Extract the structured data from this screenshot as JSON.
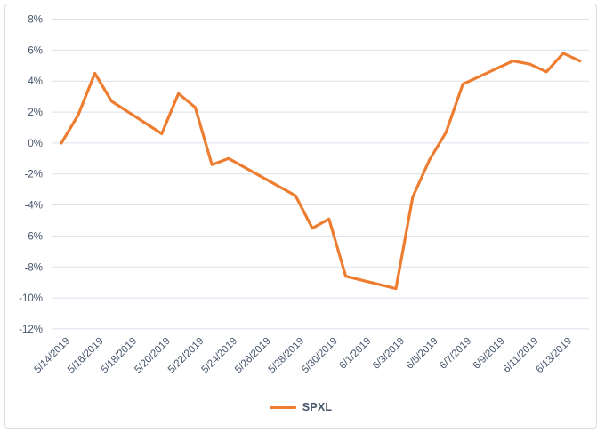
{
  "chart": {
    "legend": {
      "label": "SPXL"
    },
    "colors": {
      "series": "#ED7D31",
      "gridline": "#DAE1EB",
      "axis_text": "#44546A",
      "frame_border": "#D6DDE6",
      "background": "#FFFFFF"
    }
  },
  "chart_data": {
    "type": "line",
    "title": "",
    "xlabel": "",
    "ylabel": "",
    "grid": "horizontal",
    "legend_position": "bottom",
    "series": [
      {
        "name": "SPXL",
        "color": "#ED7D31",
        "points": [
          {
            "date": "5/14/2019",
            "value": 0.0
          },
          {
            "date": "5/15/2019",
            "value": 1.8
          },
          {
            "date": "5/16/2019",
            "value": 4.5
          },
          {
            "date": "5/17/2019",
            "value": 2.7
          },
          {
            "date": "5/20/2019",
            "value": 0.6
          },
          {
            "date": "5/21/2019",
            "value": 3.2
          },
          {
            "date": "5/22/2019",
            "value": 2.3
          },
          {
            "date": "5/23/2019",
            "value": -1.4
          },
          {
            "date": "5/24/2019",
            "value": -1.0
          },
          {
            "date": "5/28/2019",
            "value": -3.4
          },
          {
            "date": "5/29/2019",
            "value": -5.5
          },
          {
            "date": "5/30/2019",
            "value": -4.9
          },
          {
            "date": "5/31/2019",
            "value": -8.6
          },
          {
            "date": "6/3/2019",
            "value": -9.4
          },
          {
            "date": "6/4/2019",
            "value": -3.5
          },
          {
            "date": "6/5/2019",
            "value": -1.1
          },
          {
            "date": "6/6/2019",
            "value": 0.7
          },
          {
            "date": "6/7/2019",
            "value": 3.8
          },
          {
            "date": "6/10/2019",
            "value": 5.3
          },
          {
            "date": "6/11/2019",
            "value": 5.1
          },
          {
            "date": "6/12/2019",
            "value": 4.6
          },
          {
            "date": "6/13/2019",
            "value": 5.8
          },
          {
            "date": "6/14/2019",
            "value": 5.3
          }
        ]
      }
    ],
    "y_axis": {
      "unit": "%",
      "range": [
        -12,
        8
      ],
      "tick_step": 2,
      "ticks": [
        8,
        6,
        4,
        2,
        0,
        -2,
        -4,
        -6,
        -8,
        -10,
        -12
      ],
      "tick_labels": [
        "8%",
        "6%",
        "4%",
        "2%",
        "0%",
        "-2%",
        "-4%",
        "-6%",
        "-8%",
        "-10%",
        "-12%"
      ]
    },
    "x_axis": {
      "range": [
        "5/14/2019",
        "6/14/2019"
      ],
      "tick_labels": [
        "5/14/2019",
        "5/16/2019",
        "5/18/2019",
        "5/20/2019",
        "5/22/2019",
        "5/24/2019",
        "5/26/2019",
        "5/28/2019",
        "5/30/2019",
        "6/1/2019",
        "6/3/2019",
        "6/5/2019",
        "6/7/2019",
        "6/9/2019",
        "6/11/2019",
        "6/13/2019"
      ],
      "label_rotation_deg": 45
    }
  }
}
